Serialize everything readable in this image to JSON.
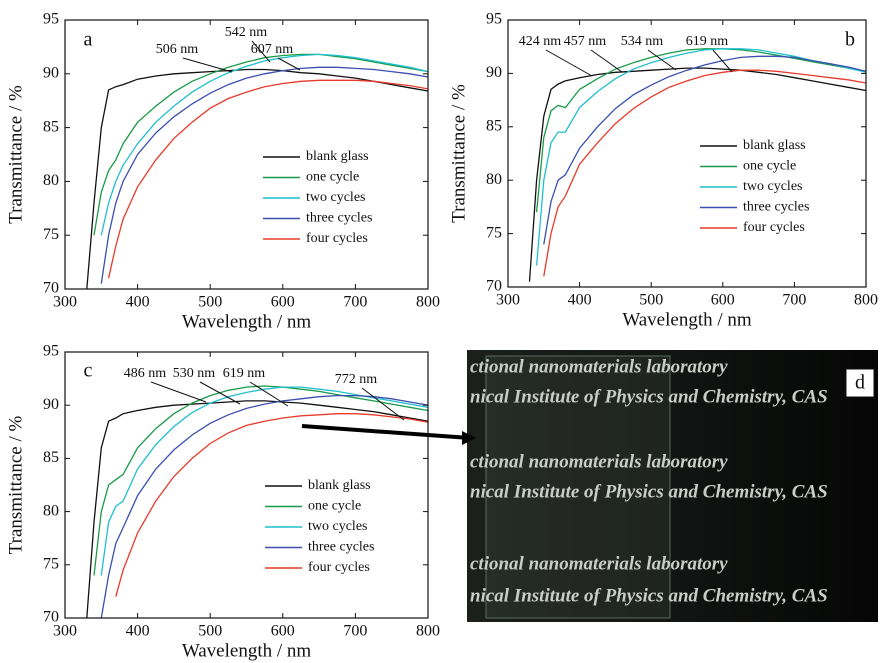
{
  "chart_data": [
    {
      "type": "line",
      "panel_label": "a",
      "xlabel": "Wavelength / nm",
      "ylabel": "Transmittance / %",
      "xlim": [
        300,
        800
      ],
      "xticks": [
        300,
        400,
        500,
        600,
        700,
        800
      ],
      "ylim": [
        70,
        95
      ],
      "yticks": [
        70,
        75,
        80,
        85,
        90,
        95
      ],
      "annotations": [
        "542 nm",
        "506 nm",
        "607 nm"
      ],
      "x": [
        330,
        340,
        350,
        360,
        370,
        380,
        400,
        425,
        450,
        475,
        500,
        525,
        550,
        575,
        600,
        625,
        650,
        675,
        700,
        725,
        750,
        775,
        800
      ],
      "series": [
        {
          "name": "blank glass",
          "color": "#111111",
          "values": [
            70,
            78,
            85,
            88.5,
            88.8,
            89,
            89.5,
            89.8,
            90,
            90.1,
            90.2,
            90.3,
            90.4,
            90.4,
            90.3,
            90.1,
            90,
            89.8,
            89.6,
            89.3,
            89,
            88.7,
            88.4
          ]
        },
        {
          "name": "one cycle",
          "color": "#1a9a4a",
          "values": [
            null,
            75,
            79,
            81,
            82,
            83.5,
            85.5,
            87,
            88.3,
            89.3,
            90,
            90.6,
            91.1,
            91.5,
            91.7,
            91.8,
            91.8,
            91.6,
            91.4,
            91.1,
            90.8,
            90.5,
            90.2
          ]
        },
        {
          "name": "two cycles",
          "color": "#1fbfcf",
          "values": [
            null,
            null,
            75,
            78,
            80,
            81.5,
            83.5,
            85.5,
            87,
            88.3,
            89.3,
            90.1,
            90.7,
            91.2,
            91.5,
            91.7,
            91.8,
            91.7,
            91.5,
            91.2,
            90.9,
            90.6,
            90.2
          ]
        },
        {
          "name": "three cycles",
          "color": "#3a4fb0",
          "values": [
            null,
            null,
            70.5,
            75,
            78,
            80,
            82.5,
            84.5,
            86,
            87.2,
            88.2,
            89,
            89.6,
            90,
            90.3,
            90.5,
            90.6,
            90.6,
            90.5,
            90.4,
            90.2,
            90,
            89.7
          ]
        },
        {
          "name": "four cycles",
          "color": "#e83a2a",
          "values": [
            null,
            null,
            null,
            71,
            74,
            76.5,
            79.5,
            82,
            84,
            85.5,
            86.8,
            87.7,
            88.3,
            88.8,
            89.1,
            89.3,
            89.4,
            89.4,
            89.4,
            89.3,
            89.1,
            88.9,
            88.6
          ]
        }
      ]
    },
    {
      "type": "line",
      "panel_label": "b",
      "xlabel": "Wavelength / nm",
      "ylabel": "Transmittance / %",
      "xlim": [
        300,
        800
      ],
      "xticks": [
        300,
        400,
        500,
        600,
        700,
        800
      ],
      "ylim": [
        70,
        95
      ],
      "yticks": [
        70,
        75,
        80,
        85,
        90,
        95
      ],
      "annotations": [
        "424 nm",
        "457 nm",
        "534 nm",
        "619 nm"
      ],
      "x": [
        330,
        340,
        350,
        360,
        370,
        380,
        400,
        425,
        450,
        475,
        500,
        525,
        550,
        575,
        600,
        625,
        650,
        675,
        700,
        725,
        750,
        775,
        800
      ],
      "series": [
        {
          "name": "blank glass",
          "color": "#111111",
          "values": [
            70.5,
            80,
            86,
            88.5,
            89,
            89.3,
            89.6,
            89.9,
            90.1,
            90.2,
            90.3,
            90.4,
            90.5,
            90.5,
            90.4,
            90.3,
            90.1,
            89.9,
            89.6,
            89.3,
            89,
            88.7,
            88.4
          ]
        },
        {
          "name": "one cycle",
          "color": "#1a9a4a",
          "values": [
            null,
            77,
            84,
            86.5,
            87,
            86.8,
            88.5,
            89.5,
            90.4,
            91,
            91.5,
            91.9,
            92.2,
            92.3,
            92.3,
            92.2,
            92,
            91.7,
            91.4,
            91.1,
            90.8,
            90.5,
            90.2
          ]
        },
        {
          "name": "two cycles",
          "color": "#1fbfcf",
          "values": [
            null,
            72,
            80,
            83.5,
            84.5,
            84.5,
            86.8,
            88.3,
            89.5,
            90.4,
            91,
            91.5,
            91.9,
            92.2,
            92.3,
            92.3,
            92.2,
            91.9,
            91.6,
            91.2,
            90.9,
            90.5,
            90.1
          ]
        },
        {
          "name": "three cycles",
          "color": "#3a4fb0",
          "values": [
            null,
            null,
            74,
            78,
            80,
            80.5,
            83,
            85,
            86.7,
            88,
            88.9,
            89.7,
            90.3,
            90.8,
            91.2,
            91.5,
            91.6,
            91.6,
            91.5,
            91.2,
            90.9,
            90.6,
            90.2
          ]
        },
        {
          "name": "four cycles",
          "color": "#e83a2a",
          "values": [
            null,
            null,
            71,
            75,
            77.5,
            78.5,
            81.5,
            83.5,
            85.3,
            86.7,
            87.8,
            88.7,
            89.3,
            89.8,
            90.1,
            90.3,
            90.3,
            90.2,
            90,
            89.8,
            89.6,
            89.4,
            89.1
          ]
        }
      ]
    },
    {
      "type": "line",
      "panel_label": "c",
      "xlabel": "Wavelength / nm",
      "ylabel": "Transmittance / %",
      "xlim": [
        300,
        800
      ],
      "xticks": [
        300,
        400,
        500,
        600,
        700,
        800
      ],
      "ylim": [
        70,
        95
      ],
      "yticks": [
        70,
        75,
        80,
        85,
        90,
        95
      ],
      "annotations": [
        "486 nm",
        "530 nm",
        "619 nm",
        "772 nm"
      ],
      "x": [
        330,
        340,
        350,
        360,
        370,
        380,
        400,
        425,
        450,
        475,
        500,
        525,
        550,
        575,
        600,
        625,
        650,
        675,
        700,
        725,
        750,
        775,
        800
      ],
      "series": [
        {
          "name": "blank glass",
          "color": "#111111",
          "values": [
            70,
            79,
            86,
            88.5,
            88.8,
            89.2,
            89.5,
            89.8,
            90,
            90.1,
            90.2,
            90.3,
            90.4,
            90.4,
            90.3,
            90.2,
            90,
            89.8,
            89.6,
            89.4,
            89.1,
            88.8,
            88.5
          ]
        },
        {
          "name": "one cycle",
          "color": "#1a9a4a",
          "values": [
            null,
            74,
            80,
            82.5,
            83,
            83.5,
            86,
            87.8,
            89.2,
            90.2,
            90.9,
            91.4,
            91.7,
            91.8,
            91.7,
            91.5,
            91.3,
            91,
            90.7,
            90.4,
            90.1,
            89.8,
            89.5
          ]
        },
        {
          "name": "two cycles",
          "color": "#1fbfcf",
          "values": [
            null,
            null,
            74,
            79,
            80.5,
            81,
            84,
            86.3,
            88,
            89.3,
            90.2,
            90.8,
            91.2,
            91.5,
            91.7,
            91.7,
            91.5,
            91.3,
            91,
            90.7,
            90.4,
            90.1,
            89.8
          ]
        },
        {
          "name": "three cycles",
          "color": "#3a4fb0",
          "values": [
            null,
            null,
            70,
            74,
            77,
            78.5,
            81.5,
            84,
            85.8,
            87.2,
            88.3,
            89.1,
            89.7,
            90.1,
            90.4,
            90.6,
            90.8,
            90.9,
            90.9,
            90.8,
            90.6,
            90.3,
            90
          ]
        },
        {
          "name": "four cycles",
          "color": "#e83a2a",
          "values": [
            null,
            null,
            null,
            null,
            72,
            74.5,
            78,
            81,
            83.3,
            85,
            86.4,
            87.4,
            88.1,
            88.5,
            88.8,
            89,
            89.1,
            89.2,
            89.2,
            89.1,
            88.9,
            88.7,
            88.4
          ]
        }
      ]
    }
  ],
  "photo": {
    "label": "d",
    "lines": [
      "ctional nanomaterials laboratory",
      "nical Institute of Physics and Chemistry, CAS",
      "ctional nanomaterials laboratory",
      "nical Institute of Physics and Chemistry, CAS",
      "ctional nanomaterials laboratory",
      "nical Institute of Physics and Chemistry, CAS"
    ]
  }
}
